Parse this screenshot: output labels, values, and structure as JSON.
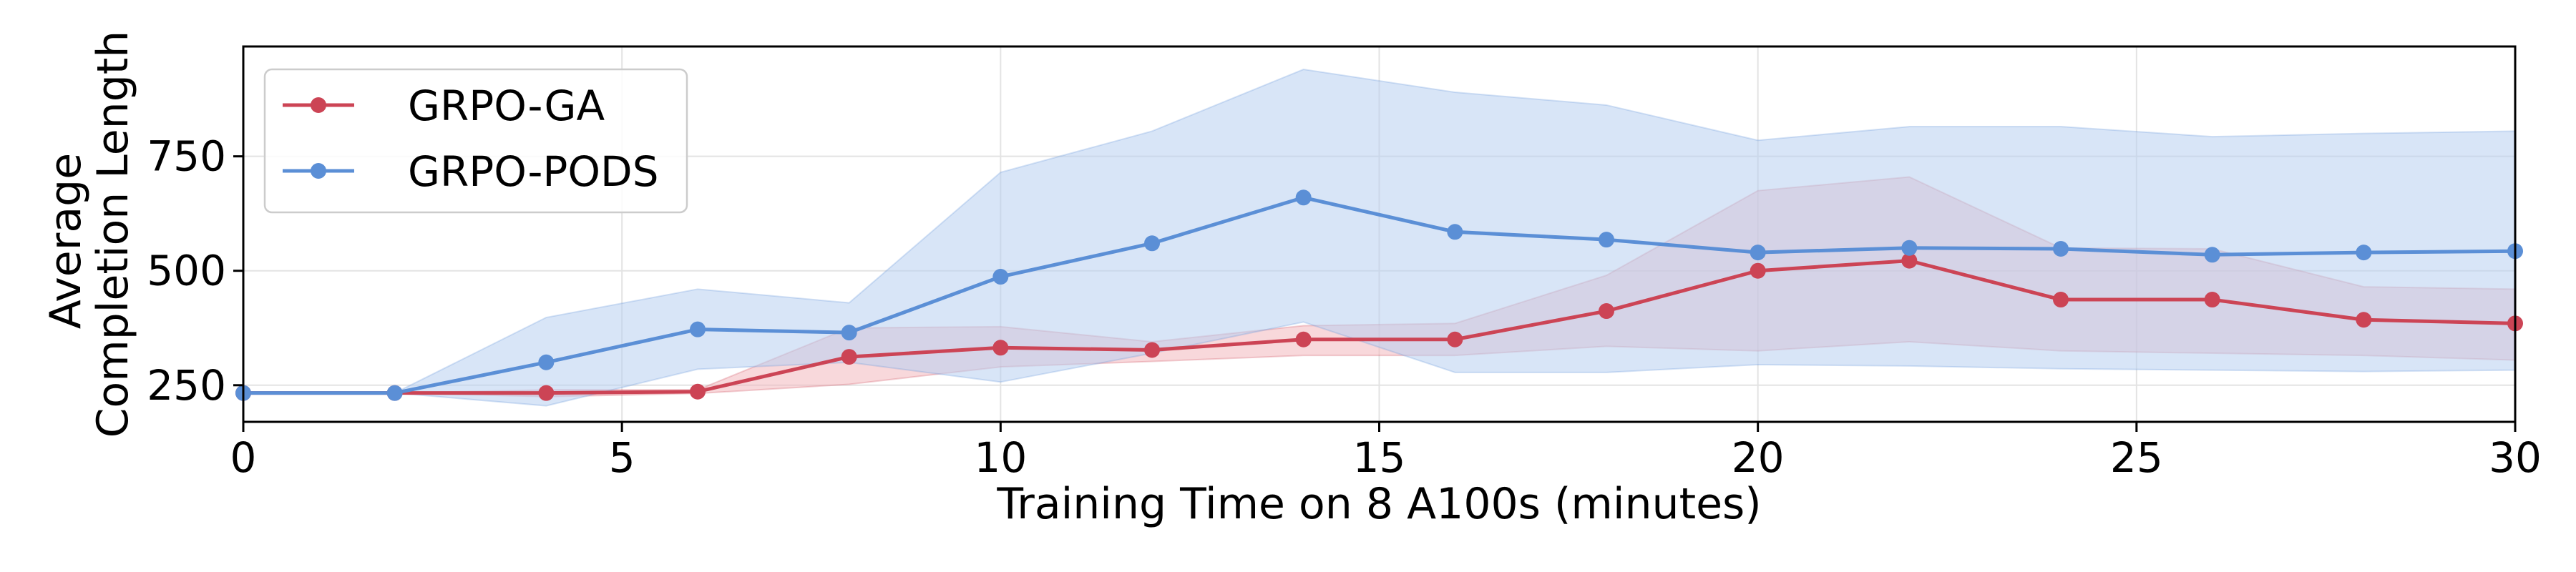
{
  "chart_data": {
    "type": "line",
    "title": "",
    "xlabel": "Training Time on 8 A100s (minutes)",
    "ylabel_lines": [
      "Average",
      "Completion Length"
    ],
    "xlim": [
      0,
      30
    ],
    "ylim": [
      170,
      990
    ],
    "xticks": [
      0,
      5,
      10,
      15,
      20,
      25,
      30
    ],
    "yticks": [
      250,
      500,
      750
    ],
    "grid": true,
    "legend_position": "top-left",
    "series": [
      {
        "name": "GRPO-GA",
        "color": "#cc4455",
        "band_color": "#f2b8bd",
        "x": [
          0,
          2,
          4,
          6,
          8,
          10,
          12,
          14,
          16,
          18,
          20,
          22,
          24,
          26,
          28,
          30
        ],
        "y": [
          233,
          233,
          233,
          236,
          312,
          332,
          327,
          350,
          350,
          412,
          500,
          522,
          437,
          437,
          393,
          385
        ],
        "band_low": [
          233,
          233,
          225,
          232,
          252,
          290,
          302,
          315,
          315,
          335,
          325,
          345,
          325,
          320,
          315,
          305
        ],
        "band_high": [
          233,
          233,
          240,
          240,
          375,
          378,
          345,
          380,
          385,
          490,
          675,
          705,
          550,
          548,
          465,
          460
        ]
      },
      {
        "name": "GRPO-PODS",
        "color": "#5b8fd6",
        "band_color": "#b8cff0",
        "x": [
          0,
          2,
          4,
          6,
          8,
          10,
          12,
          14,
          16,
          18,
          20,
          22,
          24,
          26,
          28,
          30
        ],
        "y": [
          233,
          233,
          300,
          372,
          365,
          487,
          560,
          660,
          585,
          568,
          540,
          550,
          548,
          535,
          540,
          543
        ],
        "band_low": [
          233,
          233,
          205,
          285,
          300,
          257,
          320,
          388,
          278,
          278,
          295,
          292,
          286,
          283,
          280,
          283
        ],
        "band_high": [
          233,
          233,
          398,
          460,
          430,
          715,
          805,
          940,
          890,
          862,
          785,
          815,
          815,
          793,
          800,
          805
        ]
      }
    ]
  }
}
